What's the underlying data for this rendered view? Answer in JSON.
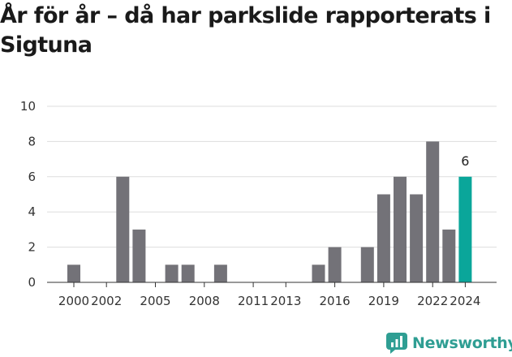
{
  "header": {
    "title": "År för år – då har parkslide rapporterats i Sigtuna"
  },
  "brand": {
    "name": "Newsworthy",
    "color": "#2f9e93",
    "icon": "newsworthy-logo-icon"
  },
  "colors": {
    "bar": "#737278",
    "highlight": "#0aa69a",
    "grid": "#dddddd",
    "axis": "#333333"
  },
  "chart_data": {
    "type": "bar",
    "title": "År för år – då har parkslide rapporterats i Sigtuna",
    "xlabel": "",
    "ylabel": "",
    "ylim": [
      0,
      10
    ],
    "yticks": [
      0,
      2,
      4,
      6,
      8,
      10
    ],
    "grid": true,
    "categories": [
      "2000",
      "2001",
      "2002",
      "2003",
      "2004",
      "2005",
      "2006",
      "2007",
      "2008",
      "2009",
      "2010",
      "2011",
      "2012",
      "2013",
      "2014",
      "2015",
      "2016",
      "2017",
      "2018",
      "2019",
      "2020",
      "2021",
      "2022",
      "2023",
      "2024"
    ],
    "xtick_labels": [
      "2000",
      "2002",
      "2005",
      "2008",
      "2011",
      "2013",
      "2016",
      "2019",
      "2022",
      "2024"
    ],
    "values": [
      1,
      0,
      0,
      6,
      3,
      0,
      1,
      1,
      0,
      1,
      0,
      0,
      0,
      0,
      0,
      1,
      2,
      0,
      2,
      5,
      6,
      5,
      8,
      3,
      6
    ],
    "highlight": {
      "category": "2024",
      "label": "6"
    }
  }
}
